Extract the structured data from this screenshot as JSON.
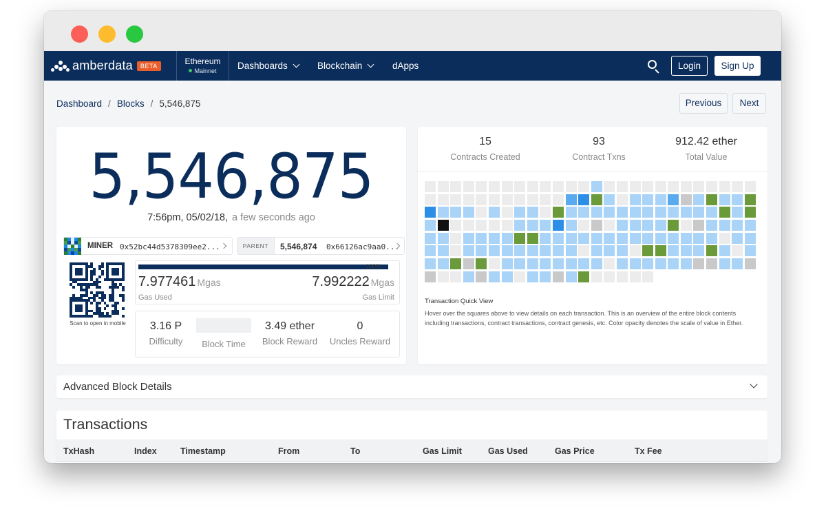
{
  "window": {
    "controls": [
      "close",
      "minimize",
      "zoom"
    ]
  },
  "navbar": {
    "brand": "amberdata",
    "beta_badge": "BETA",
    "network_name": "Ethereum",
    "network_status": "Mainnet",
    "menu": [
      {
        "label": "Dashboards",
        "has_dropdown": true
      },
      {
        "label": "Blockchain",
        "has_dropdown": true
      },
      {
        "label": "dApps",
        "has_dropdown": false
      }
    ],
    "search_icon": "search-icon",
    "login_label": "Login",
    "signup_label": "Sign Up"
  },
  "breadcrumb": {
    "items": [
      "Dashboard",
      "Blocks",
      "5,546,875"
    ]
  },
  "pager": {
    "previous_label": "Previous",
    "next_label": "Next"
  },
  "block": {
    "number": "5,546,875",
    "time": "7:56pm, 05/02/18,",
    "time_ago": "a few seconds ago",
    "miner_label": "MINER",
    "miner_address": "0x52bc44d5378309ee2...",
    "parent_label": "PARENT",
    "parent_number": "5,546,874",
    "parent_hash": "0x66126ac9aa0...",
    "qr_caption": "Scan to open in mobile",
    "gas": {
      "percent_label": "100%",
      "fill_fraction": 1.0,
      "used_value": "7.977461",
      "used_unit": "Mgas",
      "used_label": "Gas Used",
      "limit_value": "7.992222",
      "limit_unit": "Mgas",
      "limit_label": "Gas Limit"
    },
    "stats": {
      "difficulty_value": "3.16 P",
      "difficulty_label": "Difficulty",
      "block_time_value": "",
      "block_time_label": "Block Time",
      "block_reward_value": "3.49 ether",
      "block_reward_label": "Block Reward",
      "uncles_reward_value": "0",
      "uncles_reward_label": "Uncles Reward"
    }
  },
  "summary": {
    "contracts_created_value": "15",
    "contracts_created_label": "Contracts Created",
    "contract_txns_value": "93",
    "contract_txns_label": "Contract Txns",
    "total_value_value": "912.42 ether",
    "total_value_label": "Total Value"
  },
  "quick_view": {
    "title": "Transaction Quick View",
    "description": "Hover over the squares above to view details on each transaction. This is an overview of the entire block contents including transactions, contract transactions, contract genesis, etc. Color opacity denotes the scale of value in Ether.",
    "colors": {
      "g": "#ececec",
      "d": "#c9c9c9",
      "l": "#a9d3f7",
      "m": "#5aaaf0",
      "b": "#2d8ee8",
      "k": "#111111",
      "v": "#6a9a3a"
    },
    "rows": [
      "ggggggggggggglgggggggggggg",
      "gggggggggggmbvlglllmdlvllv",
      "blllglgllgvllllllllllllvlv",
      "lkggggglllblgdgllllvgdllll",
      "llgllllvvllllllllllllllgll",
      "llglllllllllglllgvvlllvlgl",
      "llvdvgllllllllgllllllddlld",
      "dggldllglldlvggggg"
    ]
  },
  "advanced": {
    "title": "Advanced Block Details"
  },
  "transactions": {
    "title": "Transactions",
    "columns": [
      "TxHash",
      "Index",
      "Timestamp",
      "From",
      "To",
      "Gas Limit",
      "Gas Used",
      "Gas Price",
      "Tx Fee"
    ]
  }
}
